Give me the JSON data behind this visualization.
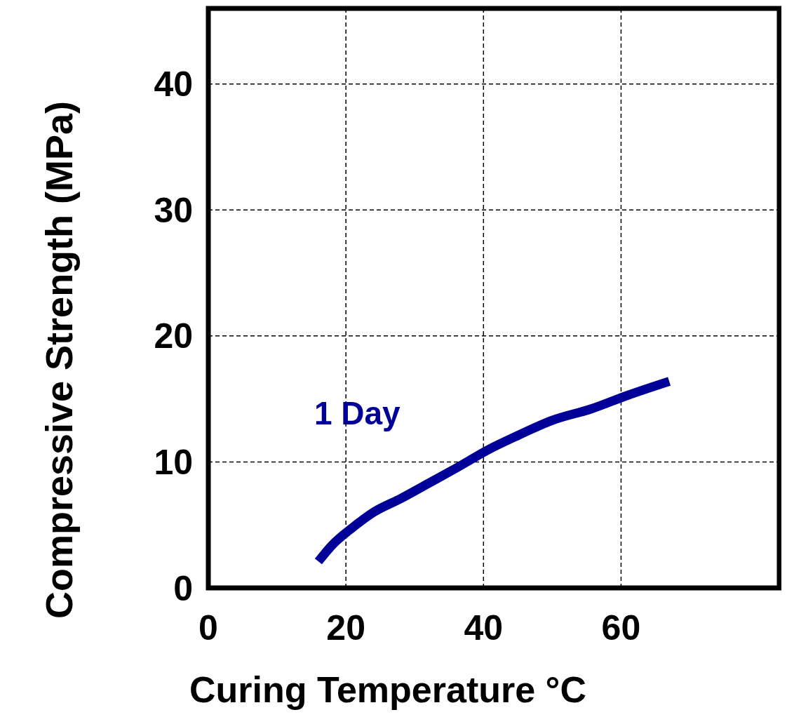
{
  "chart_data": {
    "type": "line",
    "xlabel": "Curing Temperature °C",
    "ylabel": "Compressive Strength (MPa)",
    "xlim": [
      0,
      83
    ],
    "xticks": [
      0,
      20,
      40,
      60
    ],
    "ylim": [
      0,
      46
    ],
    "yticks": [
      0,
      10,
      20,
      30,
      40
    ],
    "grid": true,
    "legend": false,
    "line_style": "solid",
    "marker": "none",
    "series": [
      {
        "name": "1 Day",
        "color": "#000099",
        "x": [
          16,
          18,
          21,
          24,
          28,
          32,
          36,
          40.8,
          45,
          50,
          55.6,
          61,
          67
        ],
        "values": [
          2.1,
          3.4,
          4.8,
          6,
          7.1,
          8.3,
          9.5,
          11,
          12.1,
          13.3,
          14.2,
          15.3,
          16.4
        ]
      }
    ]
  }
}
